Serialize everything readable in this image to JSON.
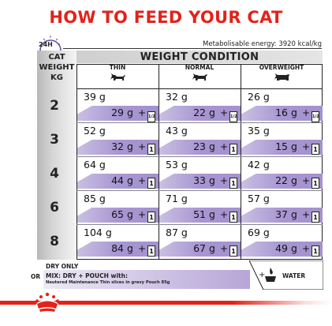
{
  "title": "HOW TO FEED YOUR CAT",
  "clock_label": "24H",
  "energy": "Metabolisable energy: 3920 kcal/kg",
  "header": {
    "cat_weight": [
      "CAT",
      "WEIGHT",
      "KG"
    ],
    "weight_condition": "WEIGHT CONDITION",
    "columns": [
      "THIN",
      "NORMAL",
      "OVERWEIGHT"
    ]
  },
  "rows": [
    {
      "kg": "2",
      "thin": {
        "dry": "39 g",
        "mix": "29 g",
        "pouch": "1/2"
      },
      "normal": {
        "dry": "32 g",
        "mix": "22 g",
        "pouch": "1/2"
      },
      "overweight": {
        "dry": "26 g",
        "mix": "16 g",
        "pouch": "1/2"
      }
    },
    {
      "kg": "3",
      "thin": {
        "dry": "52 g",
        "mix": "32 g",
        "pouch": "1"
      },
      "normal": {
        "dry": "43 g",
        "mix": "23 g",
        "pouch": "1"
      },
      "overweight": {
        "dry": "35 g",
        "mix": "15 g",
        "pouch": "1"
      }
    },
    {
      "kg": "4",
      "thin": {
        "dry": "64 g",
        "mix": "44 g",
        "pouch": "1"
      },
      "normal": {
        "dry": "53 g",
        "mix": "33 g",
        "pouch": "1"
      },
      "overweight": {
        "dry": "42 g",
        "mix": "22 g",
        "pouch": "1"
      }
    },
    {
      "kg": "6",
      "thin": {
        "dry": "85 g",
        "mix": "65 g",
        "pouch": "1"
      },
      "normal": {
        "dry": "71 g",
        "mix": "51 g",
        "pouch": "1"
      },
      "overweight": {
        "dry": "57 g",
        "mix": "37 g",
        "pouch": "1"
      }
    },
    {
      "kg": "8",
      "thin": {
        "dry": "104 g",
        "mix": "84 g",
        "pouch": "1"
      },
      "normal": {
        "dry": "87 g",
        "mix": "67 g",
        "pouch": "1"
      },
      "overweight": {
        "dry": "69 g",
        "mix": "49 g",
        "pouch": "1"
      }
    }
  ],
  "legend": {
    "dry_only": "DRY ONLY",
    "or": "OR",
    "mix": "MIX: DRY + POUCH with:",
    "mix_detail": "Neutered Maintenance Thin slices in gravy Pouch 85g",
    "water": "WATER",
    "plus": "+"
  },
  "colors": {
    "brand_red": "#e2231a",
    "band_purple": "#a896d2"
  }
}
